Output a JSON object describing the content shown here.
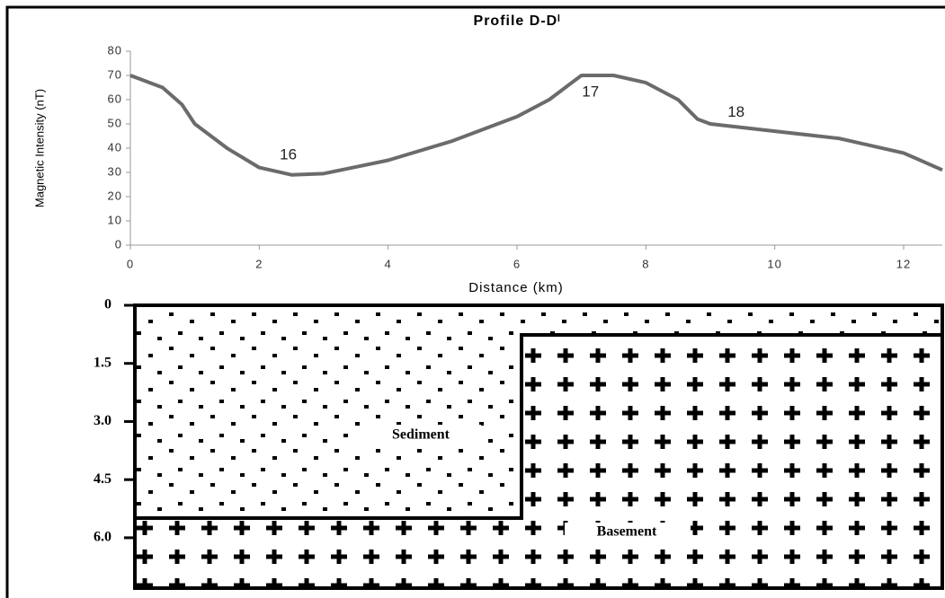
{
  "chart_data": {
    "type": "line",
    "title": "Profile D-Dˡ",
    "x_label": "Distance (km)",
    "y_label": "Magnetic Intensity (nT)",
    "x": [
      0,
      0.5,
      0.8,
      1,
      1.5,
      2,
      2.5,
      3,
      4,
      5,
      6,
      6.5,
      7,
      7.5,
      8,
      8.5,
      8.8,
      9,
      10,
      11,
      12,
      12.6
    ],
    "series": [
      {
        "color": "#6b6b6b",
        "values": [
          70,
          65,
          58,
          50,
          40,
          32,
          29,
          29.5,
          35,
          43,
          53,
          60,
          70,
          70,
          67,
          60,
          52,
          50,
          47,
          44,
          38,
          31
        ]
      }
    ],
    "xlim": [
      0,
      12.6
    ],
    "ylim": [
      0,
      80
    ],
    "xticks": [
      0,
      2,
      4,
      6,
      8,
      10,
      12
    ],
    "yticks": [
      0,
      10,
      20,
      30,
      40,
      50,
      60,
      70,
      80
    ],
    "grid": false,
    "annotations": [
      {
        "text": "16",
        "x": 2.45,
        "y": 37
      },
      {
        "text": "17",
        "x": 7.14,
        "y": 63
      },
      {
        "text": "18",
        "x": 9.4,
        "y": 54.6
      }
    ]
  },
  "model": {
    "depth_ticks": [
      0,
      1.5,
      {
        "value": 3,
        "label": "3.0"
      },
      4.5,
      {
        "value": 6,
        "label": "6.0"
      }
    ],
    "depth_lim": [
      0,
      7.3
    ],
    "sediment_label": "Sediment",
    "basement_label": "Basement"
  }
}
